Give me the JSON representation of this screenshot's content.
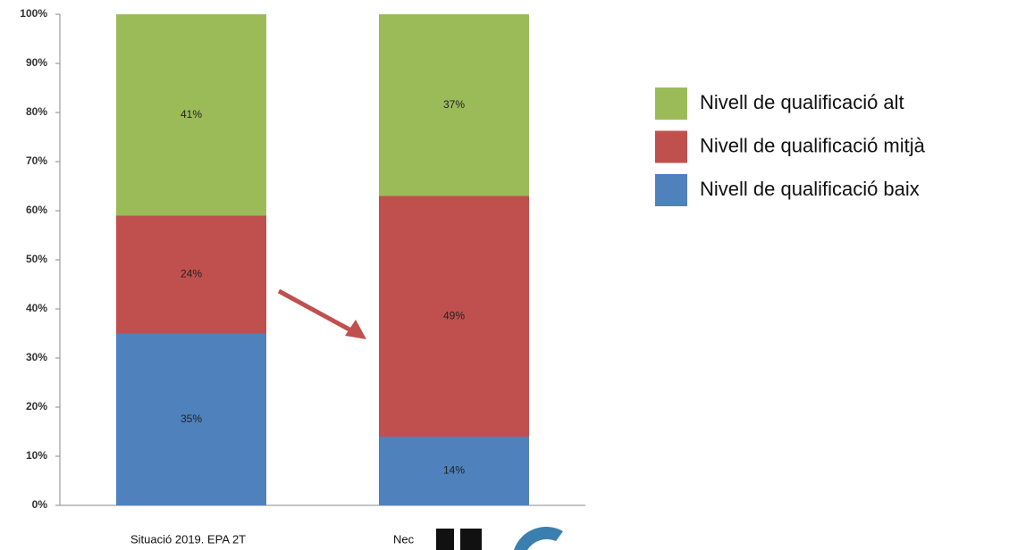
{
  "chart_data": {
    "type": "stacked_bar",
    "categories": [
      "Situació 2019. EPA 2T",
      "Nec"
    ],
    "series": [
      {
        "name": "Nivell de qualificació baix",
        "color": "#4f81bd",
        "values": [
          35,
          14
        ],
        "value_labels": [
          "35%",
          "14%"
        ]
      },
      {
        "name": "Nivell de qualificació mitjà",
        "color": "#c0504d",
        "values": [
          24,
          49
        ],
        "value_labels": [
          "24%",
          "49%"
        ]
      },
      {
        "name": "Nivell de qualificació alt",
        "color": "#9bbb59",
        "values": [
          41,
          37
        ],
        "value_labels": [
          "41%",
          "37%"
        ]
      }
    ],
    "ylim": [
      0,
      100
    ],
    "yticks": [
      {
        "value": 0,
        "label": "0%"
      },
      {
        "value": 10,
        "label": "10%"
      },
      {
        "value": 20,
        "label": "20%"
      },
      {
        "value": 30,
        "label": "30%"
      },
      {
        "value": 40,
        "label": "40%"
      },
      {
        "value": 50,
        "label": "50%"
      },
      {
        "value": 60,
        "label": "60%"
      },
      {
        "value": 70,
        "label": "70%"
      },
      {
        "value": 80,
        "label": "80%"
      },
      {
        "value": 90,
        "label": "90%"
      },
      {
        "value": 100,
        "label": "100%"
      }
    ],
    "legend": "right",
    "grid": false
  }
}
